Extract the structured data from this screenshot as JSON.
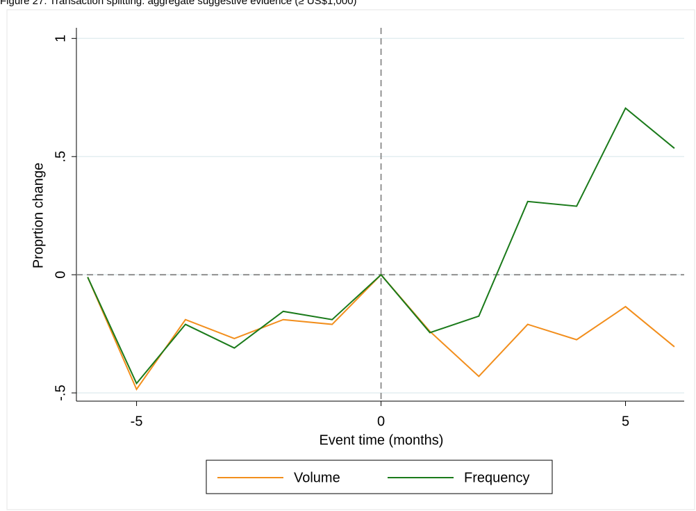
{
  "chart_data": {
    "type": "line",
    "title": "Figure 27: Transaction splitting: aggregate suggestive evidence (≥ US$1,000)",
    "x_label": "Event time (months)",
    "y_label": "Proprtion change",
    "x": [
      -6,
      -5,
      -4,
      -3,
      -2,
      -1,
      0,
      1,
      2,
      3,
      4,
      5,
      6
    ],
    "series": [
      {
        "name": "Volume",
        "color": "#f28e1c",
        "values": [
          -0.01,
          -0.485,
          -0.19,
          -0.27,
          -0.19,
          -0.21,
          0,
          -0.24,
          -0.43,
          -0.21,
          -0.275,
          -0.135,
          -0.305
        ]
      },
      {
        "name": "Frequency",
        "color": "#1a7a1a",
        "values": [
          -0.01,
          -0.46,
          -0.21,
          -0.31,
          -0.155,
          -0.19,
          0,
          -0.245,
          -0.175,
          0.31,
          0.29,
          0.705,
          0.535
        ]
      }
    ],
    "xlim": [
      -6.23,
      6.2
    ],
    "ylim": [
      -0.535,
      1.045
    ],
    "xticks": [
      -5,
      0,
      5
    ],
    "yticks": [
      {
        "value": -0.5,
        "label": "-.5"
      },
      0,
      {
        "value": 0.5,
        "label": ".5"
      },
      1
    ],
    "grid": true,
    "xline": 0,
    "yline": 0,
    "legend": "bottom"
  }
}
